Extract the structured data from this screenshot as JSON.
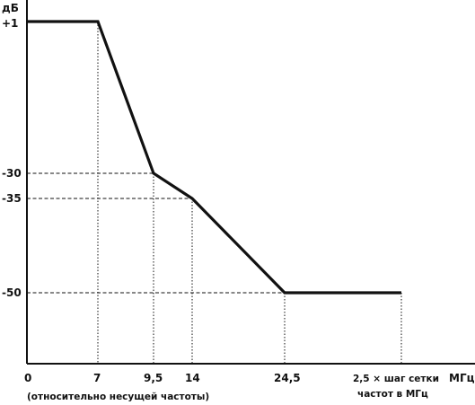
{
  "chart_data": {
    "type": "line",
    "y_unit_label": "дБ",
    "x_unit_label": "МГц",
    "x_note": "(относительно несущей частоты)",
    "x_tick_labels": [
      "0",
      "7",
      "9,5",
      "14",
      "24,5"
    ],
    "x_last_label_lines": [
      "2,5 × шаг сетки",
      "частот в МГц"
    ],
    "y_tick_labels": [
      "+1",
      "-30",
      "-35",
      "-50"
    ],
    "series": [
      {
        "points": [
          {
            "x": 0,
            "y": 1
          },
          {
            "x": 7,
            "y": 1
          },
          {
            "x": 9.5,
            "y": -30
          },
          {
            "x": 14,
            "y": -35
          },
          {
            "x": 24.5,
            "y": -50
          },
          {
            "x": "2,5 × шаг сетки частот в МГц",
            "y": -50
          }
        ]
      }
    ],
    "reference_lines": {
      "vertical_dotted_at_x": [
        "7",
        "9,5",
        "14",
        "24,5",
        "2,5 × шаг сетки частот в МГц"
      ],
      "horizontal_dashed_at_y": [
        "-30",
        "-35",
        "-50"
      ]
    },
    "grid": false
  }
}
